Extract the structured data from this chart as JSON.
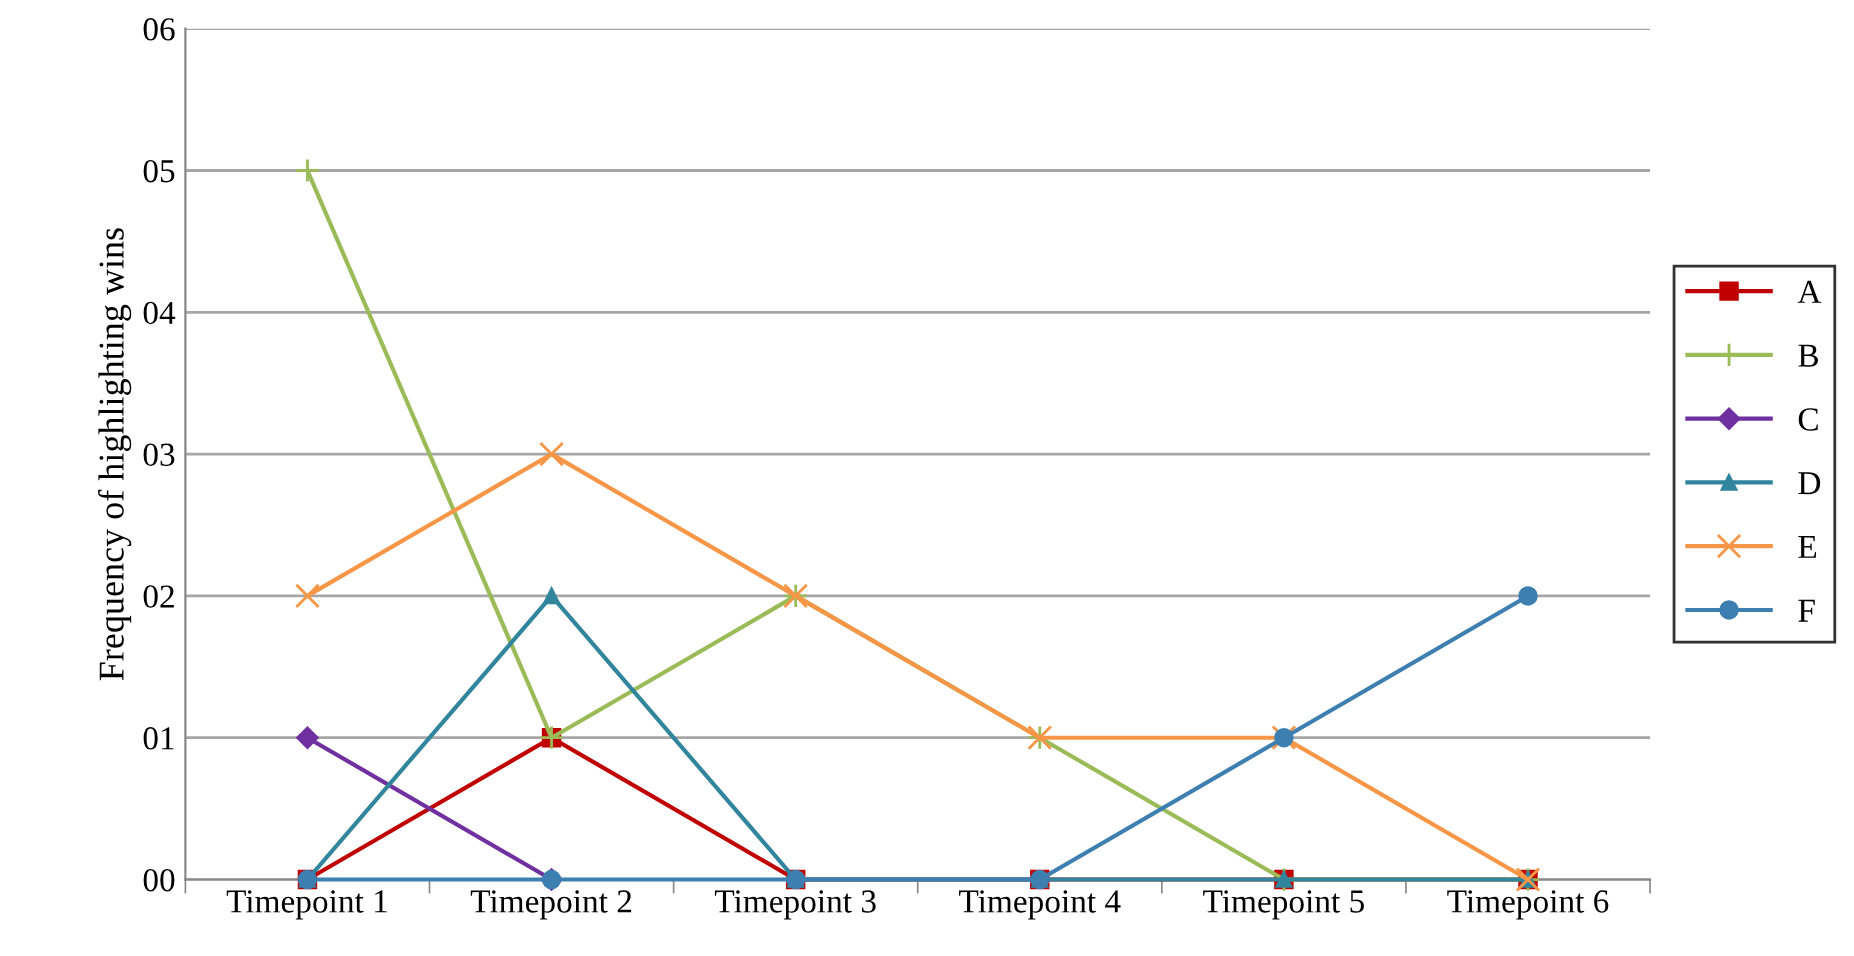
{
  "chart_data": {
    "type": "line",
    "ylabel": "Frequency of highlighting wins",
    "categories": [
      "Timepoint 1",
      "Timepoint 2",
      "Timepoint 3",
      "Timepoint 4",
      "Timepoint 5",
      "Timepoint 6"
    ],
    "ylim": [
      0,
      6
    ],
    "yticks": [
      {
        "value": 0,
        "label": "00"
      },
      {
        "value": 1,
        "label": "01"
      },
      {
        "value": 2,
        "label": "02"
      },
      {
        "value": 3,
        "label": "03"
      },
      {
        "value": 4,
        "label": "04"
      },
      {
        "value": 5,
        "label": "05"
      },
      {
        "value": 6,
        "label": "06"
      }
    ],
    "grid": "y",
    "legend": "right",
    "series": [
      {
        "name": "A",
        "color": "#c00000",
        "marker": "square",
        "values": [
          0,
          1,
          0,
          0,
          0,
          0
        ]
      },
      {
        "name": "B",
        "color": "#9bbb59",
        "marker": "plus",
        "values": [
          5,
          1,
          2,
          1,
          0,
          0
        ]
      },
      {
        "name": "C",
        "color": "#7030a0",
        "marker": "diamond",
        "values": [
          1,
          0,
          null,
          null,
          null,
          null
        ]
      },
      {
        "name": "D",
        "color": "#31859c",
        "marker": "triangle",
        "values": [
          0,
          2,
          0,
          0,
          0,
          0
        ]
      },
      {
        "name": "E",
        "color": "#f79646",
        "marker": "cross",
        "values": [
          2,
          3,
          2,
          1,
          1,
          0
        ]
      },
      {
        "name": "F",
        "color": "#3d7fb0",
        "marker": "circle",
        "values": [
          0,
          0,
          0,
          0,
          1,
          2
        ]
      }
    ]
  }
}
